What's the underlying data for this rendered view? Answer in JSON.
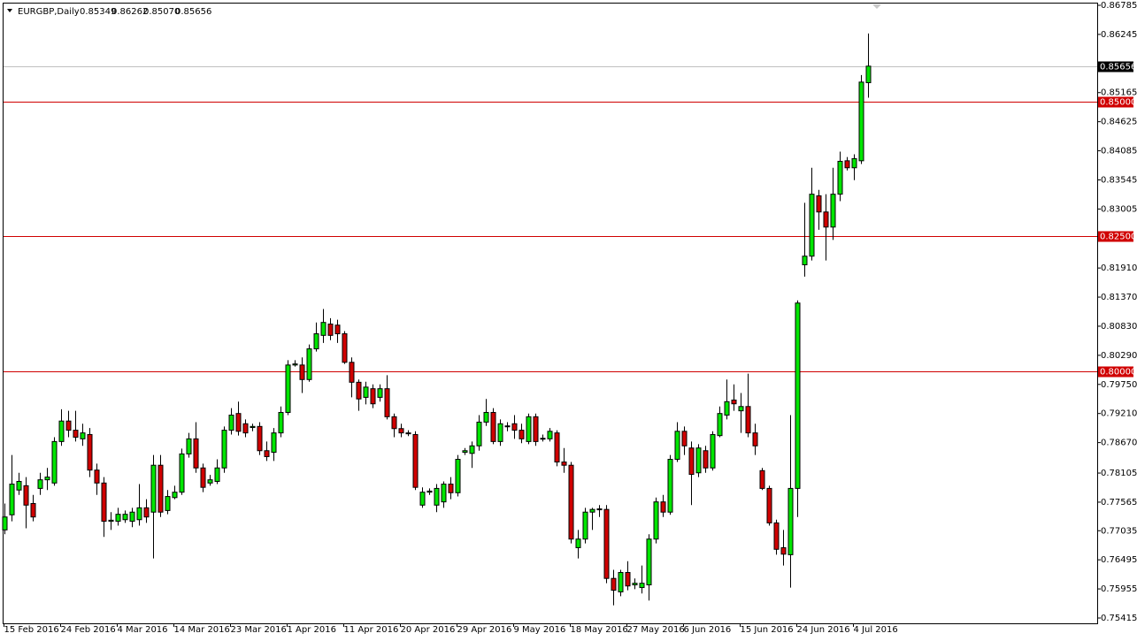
{
  "chart_data": {
    "type": "candlestick",
    "title": "EURGBP,Daily",
    "header_values": [
      "0.85349",
      "0.86262",
      "0.85070",
      "0.85656"
    ],
    "up_color": "#00e600",
    "down_color": "#d00000",
    "wick_color": "#000000",
    "ylim": [
      0.75415,
      0.86785
    ],
    "yticks": [
      0.86785,
      0.86245,
      0.85165,
      0.84625,
      0.84085,
      0.83545,
      0.83005,
      {
        "value": 0.8191,
        "label": "0.81910"
      },
      {
        "value": 0.8137,
        "label": "0.81370"
      },
      {
        "value": 0.8083,
        "label": "0.80830"
      },
      {
        "value": 0.8029,
        "label": "0.80290"
      },
      {
        "value": 0.7975,
        "label": "0.79750"
      },
      {
        "value": 0.7921,
        "label": "0.79210"
      },
      {
        "value": 0.7867,
        "label": "0.78670"
      },
      0.78105,
      0.77565,
      0.77035,
      0.76495,
      0.75955,
      0.75415
    ],
    "levels": [
      {
        "value": 0.85,
        "label": "0.85000",
        "color": "#d00000"
      },
      {
        "value": 0.825,
        "label": "0.82500",
        "color": "#d00000"
      },
      {
        "value": 0.8,
        "label": "0.80000",
        "color": "#d00000"
      }
    ],
    "price_line": {
      "value": 0.85656,
      "label": "0.85656",
      "color": "#c0c0c0"
    },
    "categories": [
      "15 Feb 2016",
      null,
      null,
      null,
      null,
      null,
      null,
      null,
      "24 Feb 2016",
      null,
      null,
      null,
      null,
      null,
      null,
      null,
      "4 Mar 2016",
      null,
      null,
      null,
      null,
      null,
      null,
      null,
      "14 Mar 2016",
      null,
      null,
      null,
      null,
      null,
      null,
      null,
      "23 Mar 2016",
      null,
      null,
      null,
      null,
      null,
      null,
      null,
      "1 Apr 2016",
      null,
      null,
      null,
      null,
      null,
      null,
      null,
      "11 Apr 2016",
      null,
      null,
      null,
      null,
      null,
      null,
      null,
      "20 Apr 2016",
      null,
      null,
      null,
      null,
      null,
      null,
      null,
      "29 Apr 2016",
      null,
      null,
      null,
      null,
      null,
      null,
      null,
      "9 May 2016",
      null,
      null,
      null,
      null,
      null,
      null,
      null,
      "18 May 2016",
      null,
      null,
      null,
      null,
      null,
      null,
      null,
      "27 May 2016",
      null,
      null,
      null,
      null,
      null,
      null,
      null,
      "6 Jun 2016",
      null,
      null,
      null,
      null,
      null,
      null,
      null,
      "15 Jun 2016",
      null,
      null,
      null,
      null,
      null,
      null,
      null,
      "24 Jun 2016",
      null,
      null,
      null,
      null,
      null,
      null,
      null,
      "4 Jul 2016",
      null,
      null
    ],
    "open": [
      0.7705,
      0.7733,
      0.7779,
      0.7787,
      0.7754,
      0.7782,
      0.7798,
      0.7792,
      0.7869,
      0.7907,
      0.789,
      0.7874,
      0.7882,
      0.7816,
      0.7792,
      0.7721,
      0.7721,
      0.7724,
      0.7721,
      0.7724,
      0.7746,
      0.7738,
      0.7825,
      0.7741,
      0.7765,
      0.7775,
      0.7846,
      0.7874,
      0.782,
      0.7792,
      0.7795,
      0.782,
      0.789,
      0.7921,
      0.7902,
      0.7895,
      0.7897,
      0.7852,
      0.7849,
      0.7885,
      0.7923,
      0.8011,
      0.8011,
      0.7984,
      0.8041,
      0.8066,
      0.8087,
      0.8085,
      0.8069,
      0.8016,
      0.7979,
      0.7951,
      0.7967,
      0.7951,
      0.7967,
      0.7915,
      0.7893,
      0.7885,
      0.7882,
      0.7751,
      0.7775,
      0.7751,
      0.7757,
      0.779,
      0.7774,
      0.7849,
      0.7847,
      0.7861,
      0.7905,
      0.7923,
      0.7869,
      0.7897,
      0.7902,
      0.789,
      0.7869,
      0.7915,
      0.7874,
      0.7874,
      0.7885,
      0.7831,
      0.7825,
      0.7672,
      0.7688,
      0.7738,
      0.7743,
      0.7743,
      0.7615,
      0.759,
      0.7626,
      0.7603,
      0.7598,
      0.7603,
      0.7688,
      0.7757,
      0.7738,
      0.7836,
      0.7888,
      0.7857,
      0.7811,
      0.7852,
      0.782,
      0.788,
      0.7918,
      0.7946,
      0.7926,
      0.7934,
      0.7885,
      0.7815,
      0.7782,
      0.7718,
      0.7672,
      0.7659,
      0.7782,
      0.8197,
      0.8213,
      0.8325,
      0.8295,
      0.8267,
      0.8328,
      0.839,
      0.8377,
      0.839,
      0.85349
    ],
    "high": [
      0.7754,
      0.7844,
      0.7811,
      0.7803,
      0.777,
      0.7811,
      0.782,
      0.7877,
      0.7929,
      0.7926,
      0.7926,
      0.7902,
      0.7894,
      0.7828,
      0.7803,
      0.7738,
      0.7746,
      0.7741,
      0.7746,
      0.779,
      0.7762,
      0.7844,
      0.7844,
      0.7779,
      0.7787,
      0.7856,
      0.7885,
      0.7905,
      0.7828,
      0.7807,
      0.7836,
      0.7897,
      0.7931,
      0.7943,
      0.791,
      0.7902,
      0.7905,
      0.7869,
      0.7894,
      0.7934,
      0.802,
      0.802,
      0.8025,
      0.8049,
      0.809,
      0.8115,
      0.8098,
      0.8095,
      0.8074,
      0.8025,
      0.7984,
      0.798,
      0.7975,
      0.7975,
      0.7992,
      0.7921,
      0.7902,
      0.789,
      0.7888,
      0.7784,
      0.7782,
      0.779,
      0.7795,
      0.7803,
      0.7844,
      0.7857,
      0.7869,
      0.7918,
      0.7948,
      0.7931,
      0.791,
      0.7905,
      0.7918,
      0.7902,
      0.7921,
      0.7921,
      0.7882,
      0.7894,
      0.789,
      0.7857,
      0.7831,
      0.7705,
      0.7746,
      0.7746,
      0.7751,
      0.7751,
      0.7631,
      0.7631,
      0.7647,
      0.7615,
      0.7639,
      0.7697,
      0.7765,
      0.777,
      0.7844,
      0.7905,
      0.7897,
      0.7869,
      0.7864,
      0.7861,
      0.7888,
      0.7934,
      0.7984,
      0.7975,
      0.7959,
      0.7995,
      0.7902,
      0.782,
      0.7787,
      0.7724,
      0.7705,
      0.7918,
      0.8131,
      0.8312,
      0.8377,
      0.8336,
      0.8328,
      0.8377,
      0.8407,
      0.8397,
      0.8402,
      0.8549,
      0.86262
    ],
    "low": [
      0.7697,
      0.7721,
      0.777,
      0.7708,
      0.7721,
      0.777,
      0.7779,
      0.7787,
      0.7861,
      0.7877,
      0.7869,
      0.7861,
      0.7803,
      0.777,
      0.7692,
      0.7705,
      0.7713,
      0.7718,
      0.771,
      0.7713,
      0.7718,
      0.7652,
      0.7729,
      0.7734,
      0.7762,
      0.777,
      0.7839,
      0.7811,
      0.7775,
      0.7787,
      0.779,
      0.7811,
      0.7882,
      0.788,
      0.7877,
      0.7888,
      0.7844,
      0.7833,
      0.7833,
      0.7877,
      0.7918,
      0.8008,
      0.7959,
      0.798,
      0.8036,
      0.8052,
      0.8057,
      0.8052,
      0.8013,
      0.7951,
      0.7926,
      0.7938,
      0.7931,
      0.7943,
      0.791,
      0.7877,
      0.7877,
      0.7879,
      0.7779,
      0.7746,
      0.777,
      0.7738,
      0.7746,
      0.7762,
      0.7767,
      0.7844,
      0.782,
      0.7852,
      0.7898,
      0.7864,
      0.7861,
      0.7888,
      0.7874,
      0.7866,
      0.7864,
      0.7861,
      0.7869,
      0.7869,
      0.7823,
      0.7811,
      0.768,
      0.7652,
      0.768,
      0.7705,
      0.7729,
      0.7606,
      0.7565,
      0.7582,
      0.7593,
      0.7595,
      0.7587,
      0.7574,
      0.768,
      0.7729,
      0.7733,
      0.7831,
      0.7844,
      0.7751,
      0.7803,
      0.7811,
      0.7815,
      0.7877,
      0.791,
      0.7926,
      0.7885,
      0.7877,
      0.7844,
      0.7779,
      0.7713,
      0.7659,
      0.7639,
      0.7598,
      0.7729,
      0.8175,
      0.8205,
      0.8262,
      0.8205,
      0.8243,
      0.8315,
      0.8372,
      0.8354,
      0.8384,
      0.8507
    ],
    "close": [
      0.7729,
      0.779,
      0.7795,
      0.7751,
      0.7729,
      0.7798,
      0.7803,
      0.7869,
      0.7907,
      0.789,
      0.7877,
      0.7885,
      0.7816,
      0.7792,
      0.7721,
      0.7723,
      0.7734,
      0.7734,
      0.7738,
      0.7746,
      0.7729,
      0.7825,
      0.7738,
      0.7767,
      0.7775,
      0.7846,
      0.7874,
      0.782,
      0.7784,
      0.7798,
      0.782,
      0.789,
      0.7918,
      0.7888,
      0.7885,
      0.7897,
      0.7852,
      0.7841,
      0.7885,
      0.7923,
      0.8011,
      0.8013,
      0.7984,
      0.8041,
      0.8069,
      0.809,
      0.8066,
      0.8069,
      0.8016,
      0.7979,
      0.7948,
      0.797,
      0.7939,
      0.7967,
      0.7915,
      0.7893,
      0.7885,
      0.7884,
      0.7784,
      0.7775,
      0.7777,
      0.7782,
      0.779,
      0.7774,
      0.7836,
      0.7852,
      0.7861,
      0.7905,
      0.7923,
      0.7869,
      0.7902,
      0.7898,
      0.789,
      0.7874,
      0.7915,
      0.7869,
      0.7875,
      0.7888,
      0.7831,
      0.7825,
      0.7688,
      0.7688,
      0.7738,
      0.7743,
      0.7744,
      0.7615,
      0.7593,
      0.7626,
      0.7601,
      0.7606,
      0.7606,
      0.7688,
      0.7757,
      0.7738,
      0.7836,
      0.7888,
      0.7861,
      0.7808,
      0.7857,
      0.782,
      0.7882,
      0.7921,
      0.7943,
      0.7939,
      0.7934,
      0.7885,
      0.7861,
      0.7782,
      0.7718,
      0.7669,
      0.766,
      0.7782,
      0.8126,
      0.8213,
      0.8328,
      0.8295,
      0.8267,
      0.8328,
      0.8389,
      0.8377,
      0.8394,
      0.8536,
      0.85656
    ]
  }
}
